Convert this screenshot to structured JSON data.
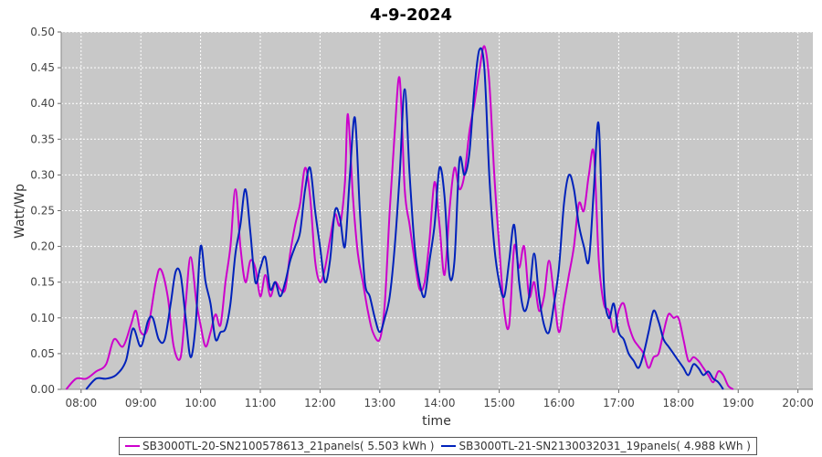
{
  "chart_data": {
    "type": "line",
    "title": "4-9-2024",
    "xlabel": "time",
    "ylabel": "Watt/Wp",
    "xlim": [
      "07:40",
      "20:15"
    ],
    "ylim": [
      0,
      0.5
    ],
    "x_ticks": [
      "08:00",
      "09:00",
      "10:00",
      "11:00",
      "12:00",
      "13:00",
      "14:00",
      "15:00",
      "16:00",
      "17:00",
      "18:00",
      "19:00",
      "20:00"
    ],
    "y_ticks": [
      "0.00",
      "0.05",
      "0.10",
      "0.15",
      "0.20",
      "0.25",
      "0.30",
      "0.35",
      "0.40",
      "0.45",
      "0.50"
    ],
    "grid": true,
    "legend_position": "bottom",
    "series": [
      {
        "name": "SB3000TL-20-SN2100578613_21panels( 5.503 kWh )",
        "color": "#cc00cc",
        "points": [
          [
            "07:45",
            0.0
          ],
          [
            "07:55",
            0.015
          ],
          [
            "08:05",
            0.015
          ],
          [
            "08:15",
            0.025
          ],
          [
            "08:25",
            0.035
          ],
          [
            "08:33",
            0.07
          ],
          [
            "08:42",
            0.06
          ],
          [
            "08:50",
            0.09
          ],
          [
            "08:55",
            0.11
          ],
          [
            "09:00",
            0.08
          ],
          [
            "09:07",
            0.085
          ],
          [
            "09:15",
            0.15
          ],
          [
            "09:20",
            0.168
          ],
          [
            "09:27",
            0.13
          ],
          [
            "09:33",
            0.06
          ],
          [
            "09:40",
            0.045
          ],
          [
            "09:45",
            0.12
          ],
          [
            "09:50",
            0.185
          ],
          [
            "09:56",
            0.12
          ],
          [
            "10:00",
            0.09
          ],
          [
            "10:05",
            0.06
          ],
          [
            "10:10",
            0.08
          ],
          [
            "10:15",
            0.105
          ],
          [
            "10:20",
            0.09
          ],
          [
            "10:25",
            0.15
          ],
          [
            "10:30",
            0.2
          ],
          [
            "10:35",
            0.28
          ],
          [
            "10:40",
            0.2
          ],
          [
            "10:45",
            0.15
          ],
          [
            "10:50",
            0.18
          ],
          [
            "10:55",
            0.17
          ],
          [
            "11:00",
            0.13
          ],
          [
            "11:05",
            0.16
          ],
          [
            "11:10",
            0.13
          ],
          [
            "11:15",
            0.15
          ],
          [
            "11:20",
            0.14
          ],
          [
            "11:25",
            0.14
          ],
          [
            "11:30",
            0.19
          ],
          [
            "11:35",
            0.23
          ],
          [
            "11:40",
            0.26
          ],
          [
            "11:45",
            0.31
          ],
          [
            "11:50",
            0.27
          ],
          [
            "11:55",
            0.18
          ],
          [
            "12:00",
            0.15
          ],
          [
            "12:05",
            0.17
          ],
          [
            "12:10",
            0.21
          ],
          [
            "12:15",
            0.245
          ],
          [
            "12:20",
            0.23
          ],
          [
            "12:25",
            0.29
          ],
          [
            "12:28",
            0.385
          ],
          [
            "12:33",
            0.27
          ],
          [
            "12:38",
            0.19
          ],
          [
            "12:43",
            0.15
          ],
          [
            "12:48",
            0.11
          ],
          [
            "12:53",
            0.08
          ],
          [
            "13:00",
            0.07
          ],
          [
            "13:05",
            0.12
          ],
          [
            "13:10",
            0.25
          ],
          [
            "13:15",
            0.36
          ],
          [
            "13:20",
            0.435
          ],
          [
            "13:25",
            0.28
          ],
          [
            "13:30",
            0.23
          ],
          [
            "13:35",
            0.18
          ],
          [
            "13:40",
            0.14
          ],
          [
            "13:45",
            0.15
          ],
          [
            "13:50",
            0.21
          ],
          [
            "13:55",
            0.29
          ],
          [
            "14:00",
            0.23
          ],
          [
            "14:05",
            0.16
          ],
          [
            "14:10",
            0.25
          ],
          [
            "14:15",
            0.31
          ],
          [
            "14:20",
            0.28
          ],
          [
            "14:25",
            0.3
          ],
          [
            "14:30",
            0.36
          ],
          [
            "14:35",
            0.4
          ],
          [
            "14:40",
            0.445
          ],
          [
            "14:45",
            0.48
          ],
          [
            "14:50",
            0.43
          ],
          [
            "14:55",
            0.3
          ],
          [
            "15:00",
            0.2
          ],
          [
            "15:05",
            0.11
          ],
          [
            "15:10",
            0.09
          ],
          [
            "15:15",
            0.2
          ],
          [
            "15:20",
            0.17
          ],
          [
            "15:25",
            0.2
          ],
          [
            "15:30",
            0.13
          ],
          [
            "15:35",
            0.15
          ],
          [
            "15:40",
            0.11
          ],
          [
            "15:45",
            0.13
          ],
          [
            "15:50",
            0.18
          ],
          [
            "15:55",
            0.13
          ],
          [
            "16:00",
            0.08
          ],
          [
            "16:05",
            0.12
          ],
          [
            "16:10",
            0.16
          ],
          [
            "16:15",
            0.2
          ],
          [
            "16:20",
            0.26
          ],
          [
            "16:25",
            0.25
          ],
          [
            "16:30",
            0.3
          ],
          [
            "16:35",
            0.33
          ],
          [
            "16:40",
            0.18
          ],
          [
            "16:45",
            0.12
          ],
          [
            "16:50",
            0.11
          ],
          [
            "16:55",
            0.08
          ],
          [
            "17:00",
            0.11
          ],
          [
            "17:05",
            0.12
          ],
          [
            "17:10",
            0.09
          ],
          [
            "17:15",
            0.07
          ],
          [
            "17:20",
            0.06
          ],
          [
            "17:25",
            0.05
          ],
          [
            "17:30",
            0.03
          ],
          [
            "17:35",
            0.045
          ],
          [
            "17:40",
            0.05
          ],
          [
            "17:45",
            0.08
          ],
          [
            "17:50",
            0.105
          ],
          [
            "17:55",
            0.1
          ],
          [
            "18:00",
            0.1
          ],
          [
            "18:05",
            0.07
          ],
          [
            "18:10",
            0.04
          ],
          [
            "18:15",
            0.045
          ],
          [
            "18:20",
            0.04
          ],
          [
            "18:25",
            0.03
          ],
          [
            "18:30",
            0.02
          ],
          [
            "18:35",
            0.01
          ],
          [
            "18:40",
            0.025
          ],
          [
            "18:45",
            0.02
          ],
          [
            "18:50",
            0.005
          ],
          [
            "18:55",
            0.0
          ]
        ]
      },
      {
        "name": "SB3000TL-21-SN2130032031_19panels( 4.988 kWh )",
        "color": "#0022bb",
        "points": [
          [
            "08:05",
            0.0
          ],
          [
            "08:15",
            0.015
          ],
          [
            "08:25",
            0.015
          ],
          [
            "08:35",
            0.02
          ],
          [
            "08:45",
            0.04
          ],
          [
            "08:52",
            0.085
          ],
          [
            "09:00",
            0.06
          ],
          [
            "09:07",
            0.095
          ],
          [
            "09:12",
            0.1
          ],
          [
            "09:18",
            0.07
          ],
          [
            "09:24",
            0.07
          ],
          [
            "09:30",
            0.12
          ],
          [
            "09:35",
            0.165
          ],
          [
            "09:40",
            0.16
          ],
          [
            "09:45",
            0.1
          ],
          [
            "09:50",
            0.045
          ],
          [
            "09:55",
            0.09
          ],
          [
            "10:00",
            0.2
          ],
          [
            "10:05",
            0.15
          ],
          [
            "10:10",
            0.12
          ],
          [
            "10:15",
            0.07
          ],
          [
            "10:20",
            0.08
          ],
          [
            "10:25",
            0.085
          ],
          [
            "10:30",
            0.12
          ],
          [
            "10:35",
            0.19
          ],
          [
            "10:40",
            0.23
          ],
          [
            "10:45",
            0.28
          ],
          [
            "10:50",
            0.22
          ],
          [
            "10:55",
            0.15
          ],
          [
            "11:00",
            0.17
          ],
          [
            "11:05",
            0.185
          ],
          [
            "11:10",
            0.14
          ],
          [
            "11:15",
            0.15
          ],
          [
            "11:20",
            0.13
          ],
          [
            "11:25",
            0.15
          ],
          [
            "11:30",
            0.18
          ],
          [
            "11:35",
            0.2
          ],
          [
            "11:40",
            0.22
          ],
          [
            "11:45",
            0.28
          ],
          [
            "11:50",
            0.31
          ],
          [
            "11:55",
            0.25
          ],
          [
            "12:00",
            0.2
          ],
          [
            "12:05",
            0.15
          ],
          [
            "12:10",
            0.18
          ],
          [
            "12:15",
            0.25
          ],
          [
            "12:20",
            0.24
          ],
          [
            "12:25",
            0.2
          ],
          [
            "12:30",
            0.3
          ],
          [
            "12:35",
            0.38
          ],
          [
            "12:40",
            0.25
          ],
          [
            "12:45",
            0.15
          ],
          [
            "12:50",
            0.13
          ],
          [
            "12:55",
            0.1
          ],
          [
            "13:00",
            0.08
          ],
          [
            "13:05",
            0.1
          ],
          [
            "13:10",
            0.13
          ],
          [
            "13:15",
            0.2
          ],
          [
            "13:20",
            0.3
          ],
          [
            "13:25",
            0.42
          ],
          [
            "13:30",
            0.3
          ],
          [
            "13:35",
            0.2
          ],
          [
            "13:40",
            0.15
          ],
          [
            "13:45",
            0.13
          ],
          [
            "13:50",
            0.18
          ],
          [
            "13:55",
            0.23
          ],
          [
            "14:00",
            0.31
          ],
          [
            "14:05",
            0.27
          ],
          [
            "14:10",
            0.16
          ],
          [
            "14:15",
            0.18
          ],
          [
            "14:20",
            0.32
          ],
          [
            "14:25",
            0.3
          ],
          [
            "14:30",
            0.33
          ],
          [
            "14:35",
            0.42
          ],
          [
            "14:40",
            0.475
          ],
          [
            "14:45",
            0.45
          ],
          [
            "14:50",
            0.3
          ],
          [
            "14:55",
            0.2
          ],
          [
            "15:00",
            0.15
          ],
          [
            "15:05",
            0.13
          ],
          [
            "15:10",
            0.18
          ],
          [
            "15:15",
            0.23
          ],
          [
            "15:20",
            0.15
          ],
          [
            "15:25",
            0.11
          ],
          [
            "15:30",
            0.13
          ],
          [
            "15:35",
            0.19
          ],
          [
            "15:40",
            0.13
          ],
          [
            "15:45",
            0.09
          ],
          [
            "15:50",
            0.08
          ],
          [
            "15:55",
            0.12
          ],
          [
            "16:00",
            0.17
          ],
          [
            "16:05",
            0.26
          ],
          [
            "16:10",
            0.3
          ],
          [
            "16:15",
            0.28
          ],
          [
            "16:20",
            0.23
          ],
          [
            "16:25",
            0.2
          ],
          [
            "16:30",
            0.18
          ],
          [
            "16:35",
            0.28
          ],
          [
            "16:40",
            0.37
          ],
          [
            "16:45",
            0.15
          ],
          [
            "16:50",
            0.1
          ],
          [
            "16:55",
            0.12
          ],
          [
            "17:00",
            0.08
          ],
          [
            "17:05",
            0.07
          ],
          [
            "17:10",
            0.05
          ],
          [
            "17:15",
            0.04
          ],
          [
            "17:20",
            0.03
          ],
          [
            "17:25",
            0.05
          ],
          [
            "17:30",
            0.08
          ],
          [
            "17:35",
            0.11
          ],
          [
            "17:40",
            0.095
          ],
          [
            "17:45",
            0.07
          ],
          [
            "17:50",
            0.06
          ],
          [
            "17:55",
            0.05
          ],
          [
            "18:00",
            0.04
          ],
          [
            "18:05",
            0.03
          ],
          [
            "18:10",
            0.02
          ],
          [
            "18:15",
            0.035
          ],
          [
            "18:20",
            0.03
          ],
          [
            "18:25",
            0.02
          ],
          [
            "18:30",
            0.025
          ],
          [
            "18:35",
            0.015
          ],
          [
            "18:40",
            0.01
          ],
          [
            "18:45",
            0.0
          ]
        ]
      }
    ]
  }
}
